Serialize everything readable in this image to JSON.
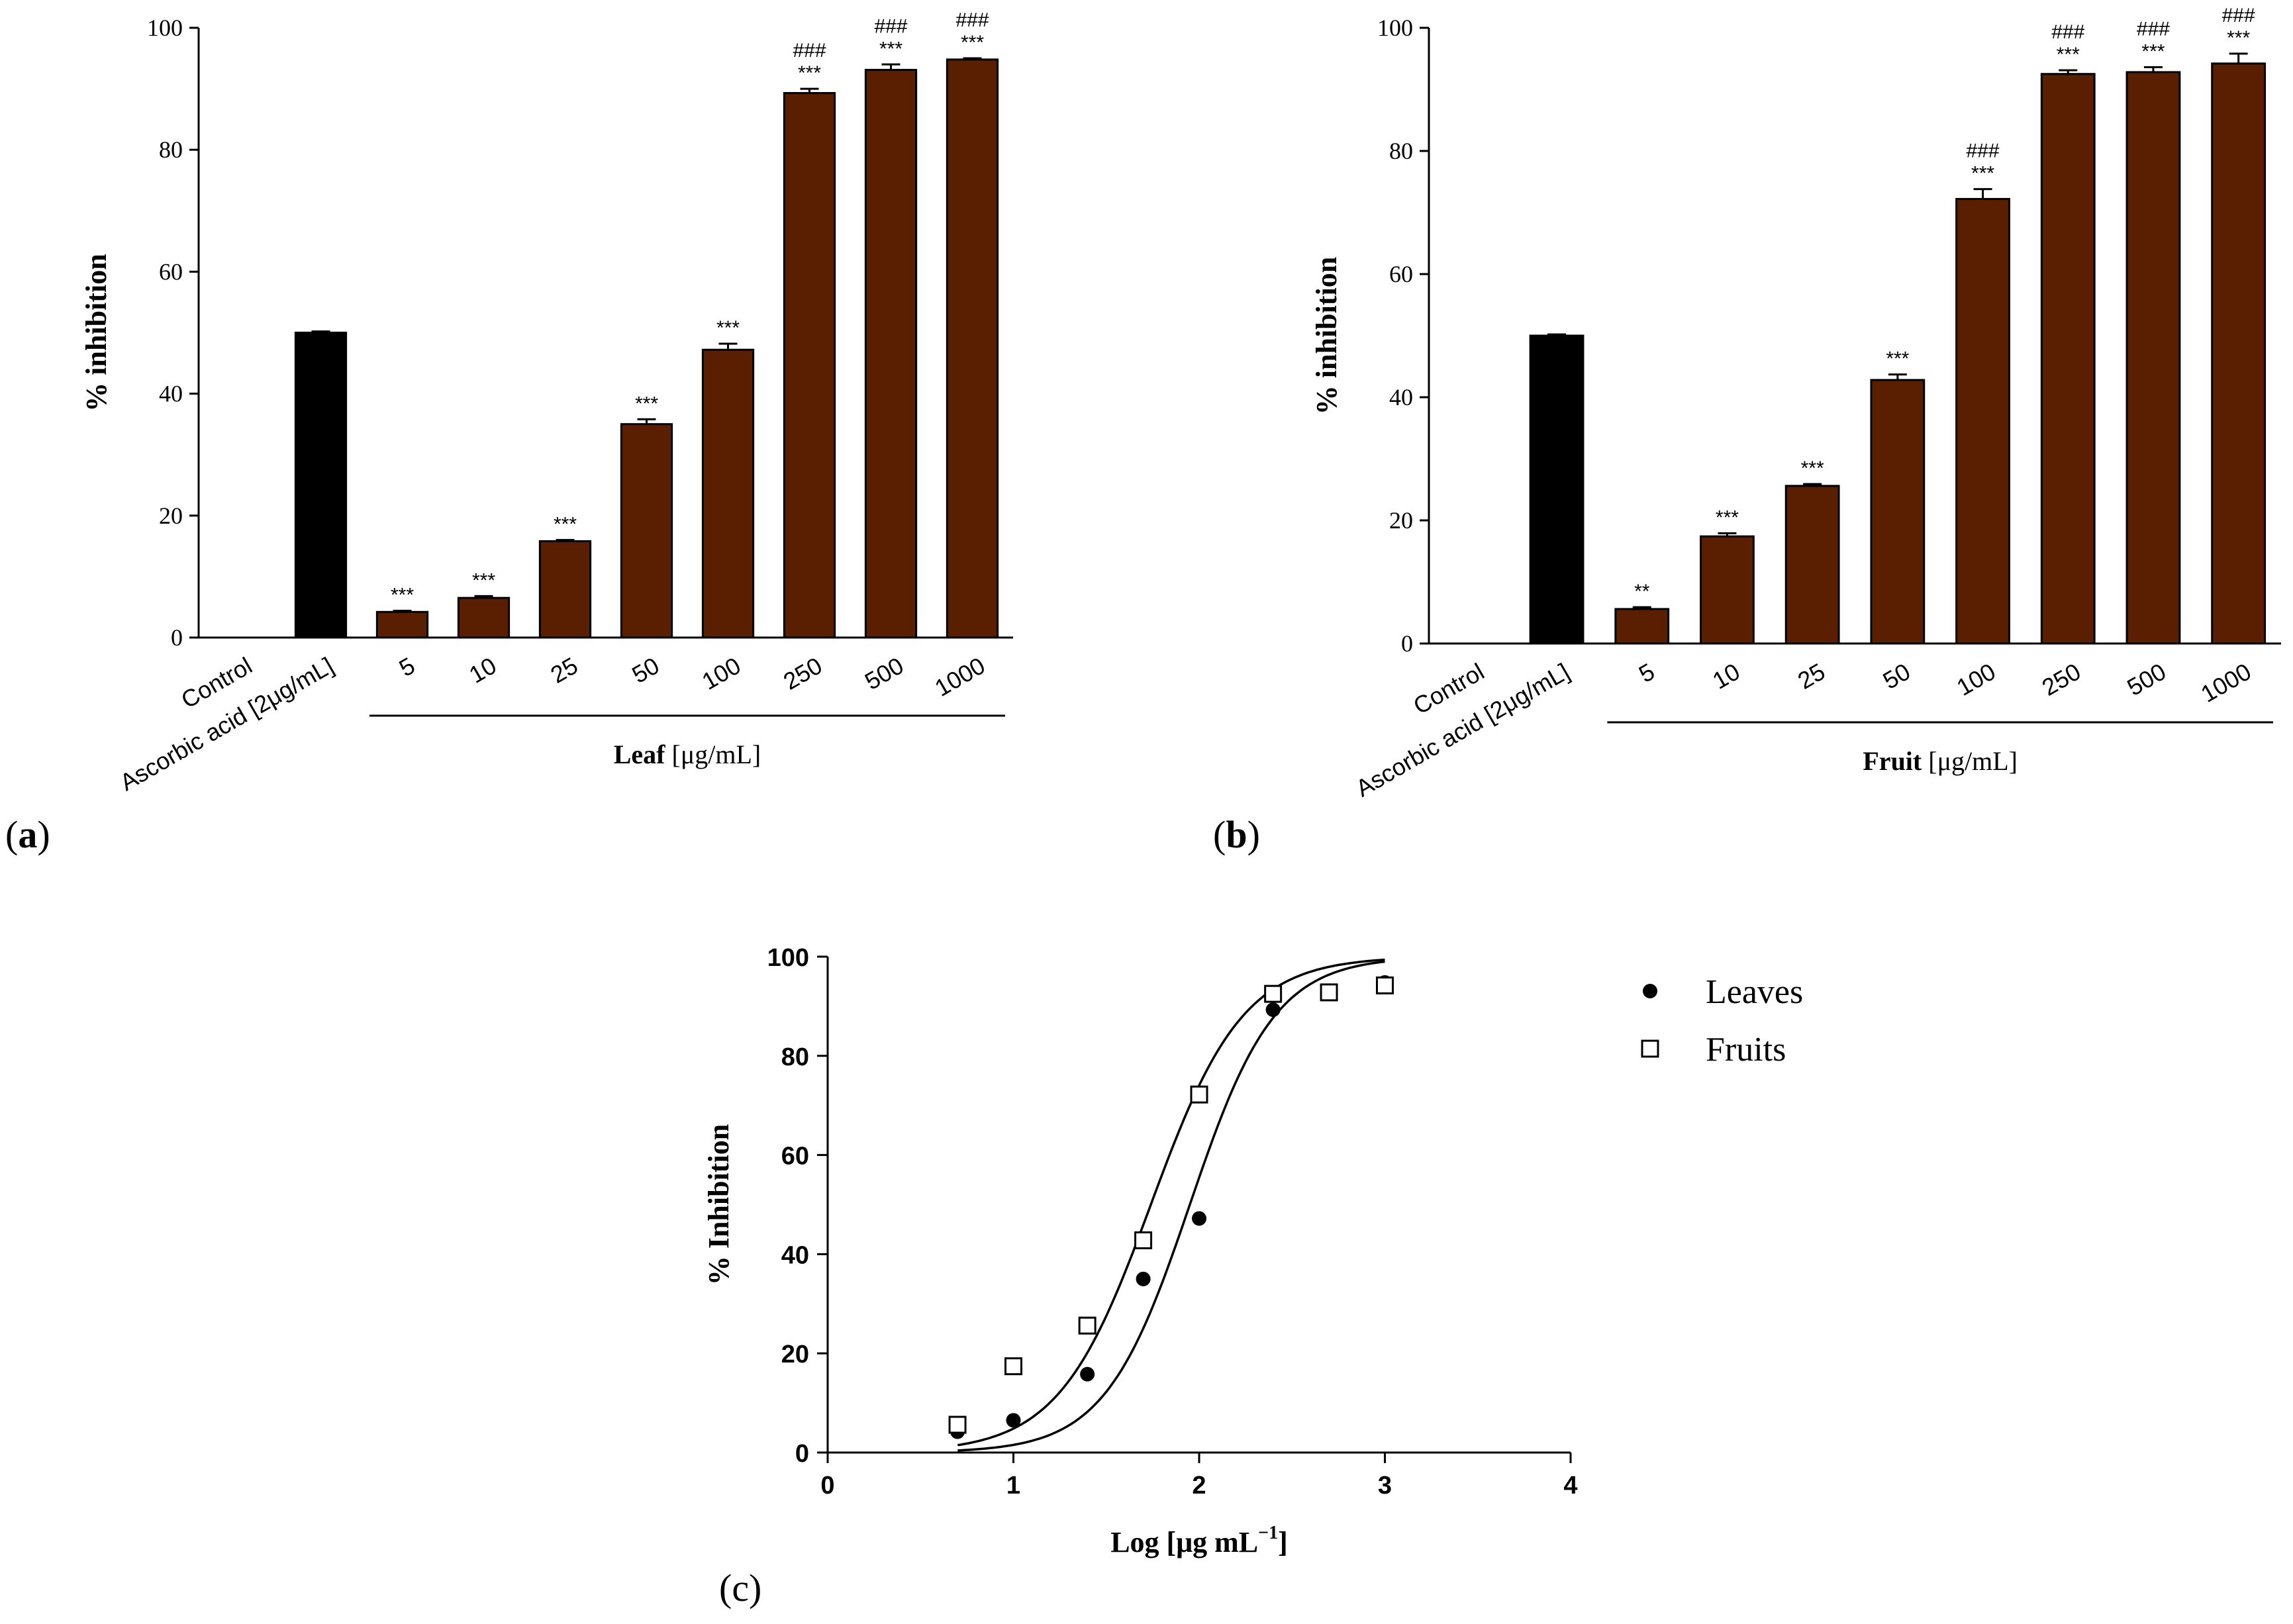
{
  "chart_data": [
    {
      "type": "bar",
      "panel_label": "(a)",
      "panel_letter": "a",
      "ylabel": "% inhibition",
      "ylim": [
        0,
        100
      ],
      "yticks": [
        0,
        20,
        40,
        60,
        80,
        100
      ],
      "categories": [
        "Control",
        "Ascorbic acid [2μg/mL]",
        "5",
        "10",
        "25",
        "50",
        "100",
        "250",
        "500",
        "1000"
      ],
      "values": [
        0,
        50,
        4.2,
        6.5,
        15.8,
        35,
        47.2,
        89.3,
        93.1,
        94.8
      ],
      "errors": [
        0,
        0.2,
        0.2,
        0.3,
        0.2,
        0.8,
        1.0,
        0.7,
        0.9,
        0.2
      ],
      "annotations_top": [
        "",
        "",
        "",
        "",
        "",
        "",
        "",
        "###",
        "###",
        "###"
      ],
      "annotations": [
        "",
        "",
        "***",
        "***",
        "***",
        "***",
        "***",
        "***",
        "***",
        "***"
      ],
      "group_label_bold": "Leaf",
      "group_label_unit": "[μg/mL]",
      "colors": {
        "reference": "#000000",
        "sample": "#5a1f00"
      }
    },
    {
      "type": "bar",
      "panel_label": "(b)",
      "panel_letter": "b",
      "ylabel": "% inhibition",
      "ylim": [
        0,
        100
      ],
      "yticks": [
        0,
        20,
        40,
        60,
        80,
        100
      ],
      "categories": [
        "Control",
        "Ascorbic acid [2μg/mL]",
        "5",
        "10",
        "25",
        "50",
        "100",
        "250",
        "500",
        "1000"
      ],
      "values": [
        0,
        50,
        5.6,
        17.4,
        25.6,
        42.8,
        72.2,
        92.5,
        92.8,
        94.2
      ],
      "errors": [
        0,
        0.2,
        0.3,
        0.5,
        0.3,
        0.9,
        1.6,
        0.6,
        0.8,
        1.6
      ],
      "annotations_top": [
        "",
        "",
        "",
        "",
        "",
        "",
        "###",
        "###",
        "###",
        "###"
      ],
      "annotations": [
        "",
        "",
        "**",
        "***",
        "***",
        "***",
        "***",
        "***",
        "***",
        "***"
      ],
      "group_label_bold": "Fruit",
      "group_label_unit": "[μg/mL]",
      "colors": {
        "reference": "#000000",
        "sample": "#5a1f00"
      }
    },
    {
      "type": "scatter",
      "panel_label": "(c)",
      "xlabel": "Log [μg mL",
      "xlabel_sup": "−1",
      "xlabel_end": "]",
      "ylabel": "% Inhibition",
      "xlim": [
        0,
        4
      ],
      "ylim": [
        0,
        100
      ],
      "xticks": [
        0,
        1,
        2,
        3,
        4
      ],
      "yticks": [
        0,
        20,
        40,
        60,
        80,
        100
      ],
      "series": [
        {
          "name": "Leaves",
          "marker": "filled-circle",
          "x": [
            0.699,
            1.0,
            1.398,
            1.699,
            2.0,
            2.398,
            2.699,
            3.0
          ],
          "y": [
            4.2,
            6.5,
            15.8,
            35,
            47.2,
            89.3,
            93.1,
            94.8
          ],
          "fit": {
            "bottom": 0,
            "top": 100,
            "logEC50": 1.95,
            "hill": 1.9
          }
        },
        {
          "name": "Fruits",
          "marker": "open-square",
          "x": [
            0.699,
            1.0,
            1.398,
            1.699,
            2.0,
            2.398,
            2.699,
            3.0
          ],
          "y": [
            5.6,
            17.4,
            25.6,
            42.8,
            72.2,
            92.5,
            92.8,
            94.2
          ],
          "fit": {
            "bottom": 0,
            "top": 100,
            "logEC50": 1.74,
            "hill": 1.75
          }
        }
      ],
      "legend_position": "right"
    }
  ]
}
